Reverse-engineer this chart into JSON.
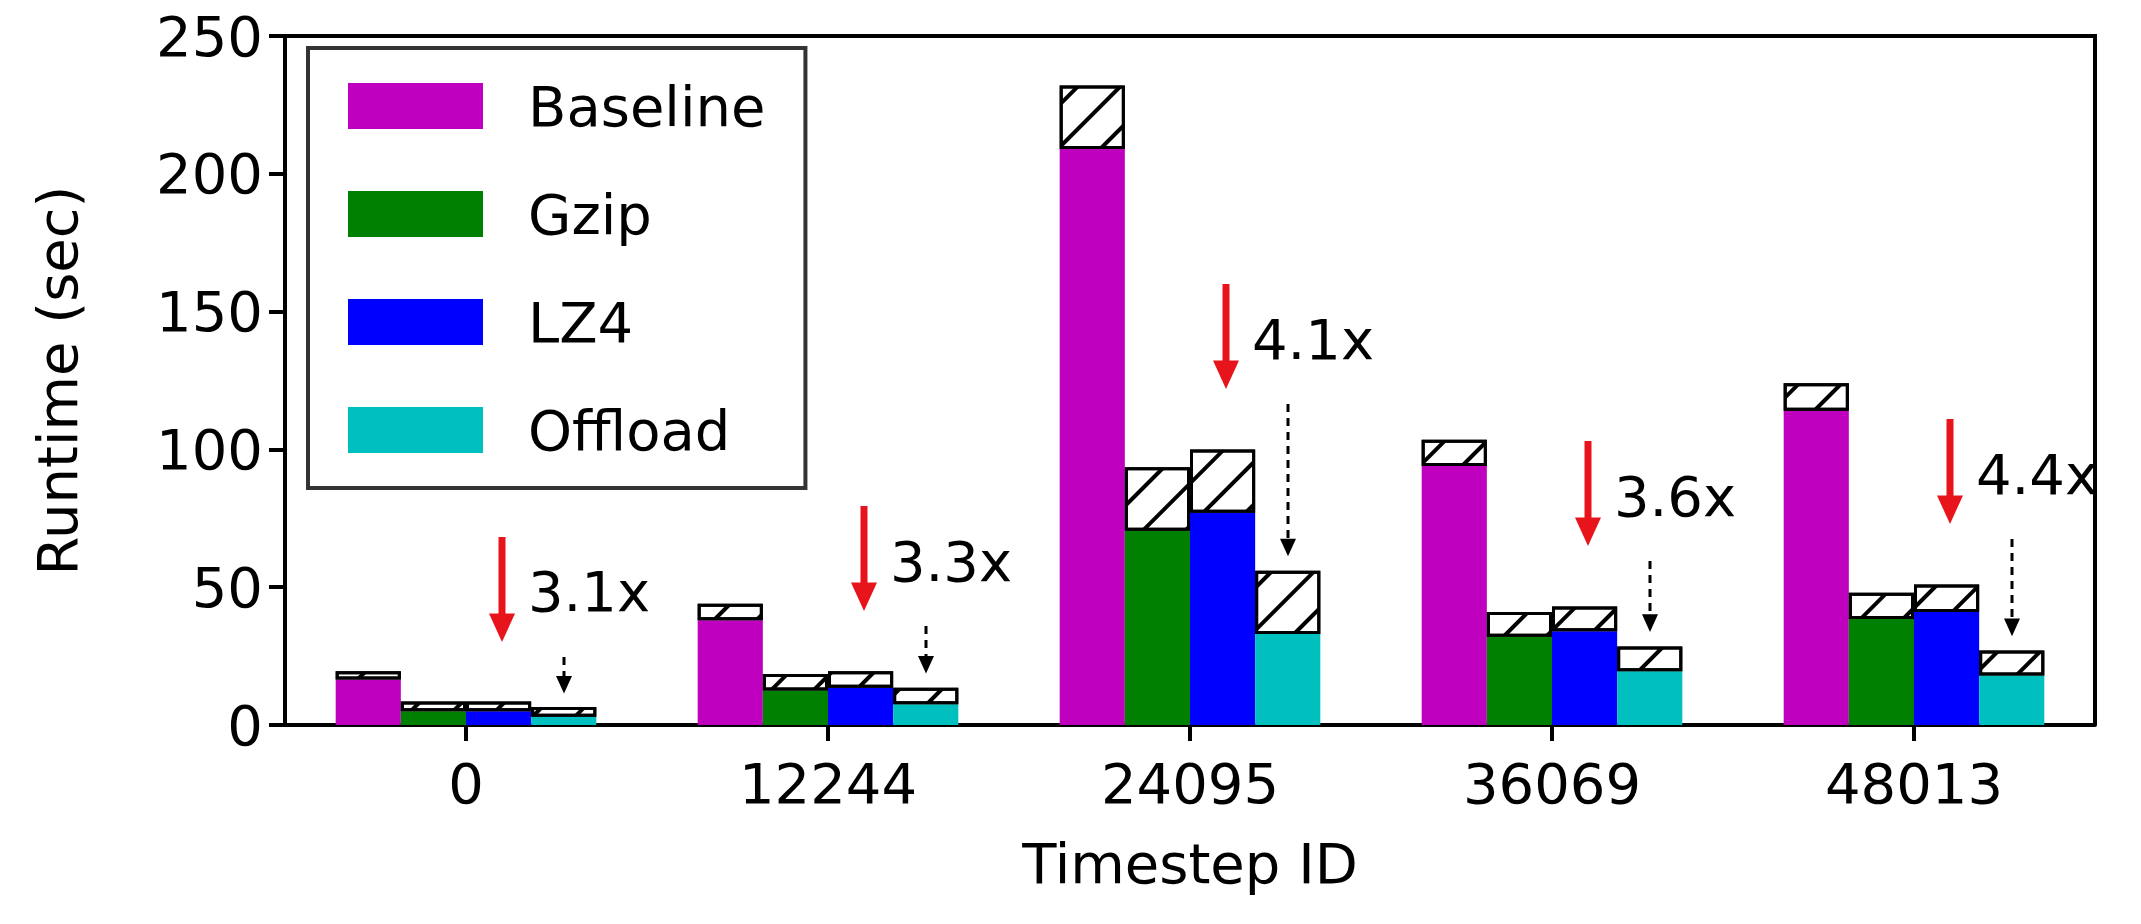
{
  "chart_data": {
    "type": "bar",
    "xlabel": "Timestep ID",
    "ylabel": "Runtime (sec)",
    "categories": [
      "0",
      "12244",
      "24095",
      "36069",
      "48013"
    ],
    "series": [
      {
        "name": "Baseline",
        "color": "#bf00bf",
        "values": [
          16.5,
          38,
          209,
          94,
          114
        ]
      },
      {
        "color": "#ffffff",
        "base": [
          16.5,
          38,
          209,
          94,
          114
        ],
        "values": [
          3,
          6,
          23,
          9.5,
          10
        ]
      },
      {
        "name": "Gzip",
        "color": "#008000",
        "values": [
          5,
          12.5,
          70.5,
          32,
          38.5
        ]
      },
      {
        "color": "#ffffff",
        "base": [
          5,
          12.5,
          70.5,
          32,
          38.5
        ],
        "values": [
          3.5,
          6,
          23,
          9,
          9.5
        ]
      },
      {
        "name": "LZ4",
        "color": "#0000ff",
        "values": [
          5,
          13.5,
          77,
          34,
          41
        ]
      },
      {
        "color": "#ffffff",
        "base": [
          5,
          13.5,
          77,
          34,
          41
        ],
        "values": [
          3.5,
          6,
          23,
          9,
          10
        ]
      },
      {
        "name": "Offload",
        "color": "#00bfbf",
        "values": [
          3,
          7.5,
          33,
          19.5,
          18
        ]
      },
      {
        "color": "#ffffff",
        "base": [
          3,
          7.5,
          33,
          19.5,
          18
        ],
        "values": [
          3.5,
          6,
          23,
          9,
          9
        ]
      }
    ],
    "ylim": [
      0,
      250
    ],
    "yticks": [
      0,
      50,
      100,
      150,
      200,
      250
    ],
    "grid": false,
    "legend": "top left",
    "annotations": [
      "3.1x",
      "3.3x",
      "4.1x",
      "3.6x",
      "4.4x"
    ]
  }
}
